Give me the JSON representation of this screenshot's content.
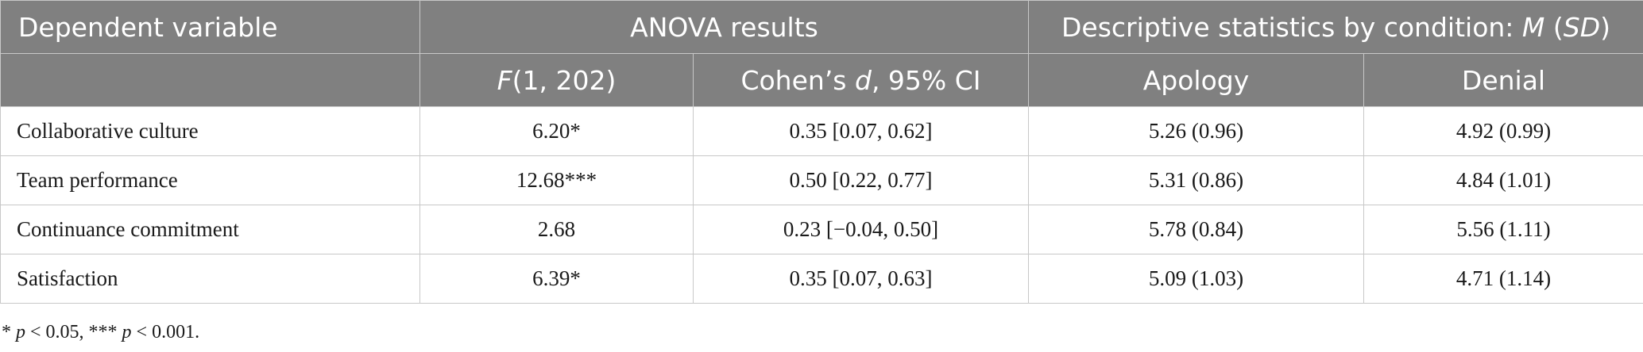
{
  "header": {
    "dependent_variable": "Dependent variable",
    "anova_results": "ANOVA results",
    "descriptive": {
      "prefix": "Descriptive statistics by condition: ",
      "m": "M",
      "open": " (",
      "sd": "SD",
      "close": ")"
    },
    "f_stat": {
      "f": "F",
      "rest": "(1, 202)"
    },
    "cohens": {
      "prefix": "Cohen’s ",
      "d": "d",
      "suffix": ", 95% CI"
    },
    "apology": "Apology",
    "denial": "Denial"
  },
  "rows": [
    {
      "variable": "Collaborative culture",
      "f": "6.20*",
      "d": "0.35 [0.07, 0.62]",
      "apology": "5.26 (0.96)",
      "denial": "4.92 (0.99)"
    },
    {
      "variable": "Team performance",
      "f": "12.68***",
      "d": "0.50 [0.22, 0.77]",
      "apology": "5.31 (0.86)",
      "denial": "4.84 (1.01)"
    },
    {
      "variable": "Continuance commitment",
      "f": "2.68",
      "d": "0.23 [−0.04, 0.50]",
      "apology": "5.78 (0.84)",
      "denial": "5.56 (1.11)"
    },
    {
      "variable": "Satisfaction",
      "f": "6.39*",
      "d": "0.35 [0.07, 0.63]",
      "apology": "5.09 (1.03)",
      "denial": "4.71 (1.14)"
    }
  ],
  "footnote": {
    "star1": "* ",
    "p1": "p",
    "t1": " < 0.05, *** ",
    "p2": "p",
    "t2": " < 0.001."
  }
}
